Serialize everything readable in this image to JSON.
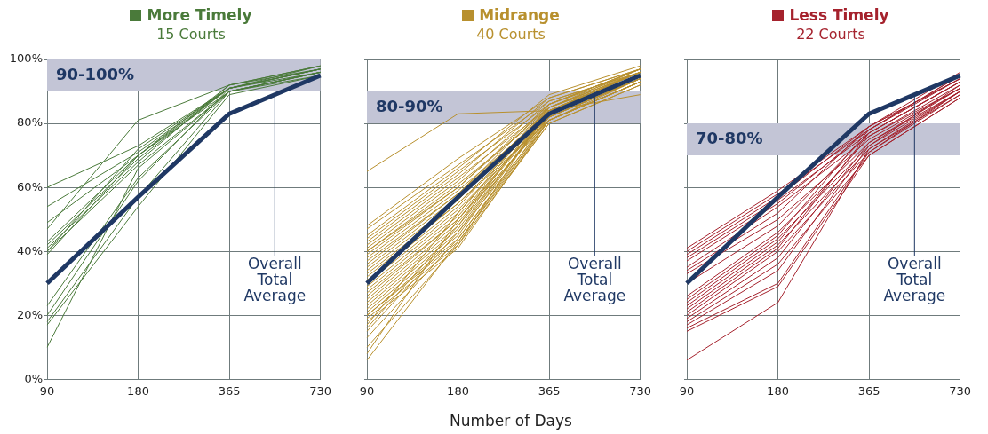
{
  "chart_data": [
    {
      "type": "line",
      "title": "More Timely",
      "subtitle": "15 Courts",
      "categories": [
        "90",
        "180",
        "365",
        "730"
      ],
      "ylim": [
        0,
        100
      ],
      "yticks": [
        {
          "value": 0,
          "label": "0%"
        },
        {
          "value": 20,
          "label": "20%"
        },
        {
          "value": 40,
          "label": "40%"
        },
        {
          "value": 60,
          "label": "60%"
        },
        {
          "value": 80,
          "label": "80%"
        },
        {
          "value": 100,
          "label": "100%"
        }
      ],
      "grid": true,
      "legend": false,
      "marker": "none",
      "bands": [
        {
          "axis": "y",
          "from": 90,
          "to": 100,
          "label": "90-100%",
          "color": "#c3c5d6"
        }
      ],
      "annotations": [
        "Overall Total Average"
      ],
      "series": [
        {
          "color": "#4a7a3a",
          "values": [
            60,
            73,
            91,
            97
          ]
        },
        {
          "color": "#4a7a3a",
          "values": [
            54,
            71,
            91,
            97
          ]
        },
        {
          "color": "#4a7a3a",
          "values": [
            49,
            70,
            91,
            96
          ]
        },
        {
          "color": "#4a7a3a",
          "values": [
            43,
            70,
            92,
            98
          ]
        },
        {
          "color": "#4a7a3a",
          "values": [
            42,
            69,
            91,
            97
          ]
        },
        {
          "color": "#4a7a3a",
          "values": [
            41,
            68,
            92,
            97
          ]
        },
        {
          "color": "#4a7a3a",
          "values": [
            40,
            67,
            90,
            96
          ]
        },
        {
          "color": "#4a7a3a",
          "values": [
            40,
            72,
            91,
            98
          ]
        },
        {
          "color": "#4a7a3a",
          "values": [
            39,
            70,
            90,
            96
          ]
        },
        {
          "color": "#4a7a3a",
          "values": [
            23,
            63,
            90,
            95
          ]
        },
        {
          "color": "#4a7a3a",
          "values": [
            20,
            62,
            91,
            97
          ]
        },
        {
          "color": "#4a7a3a",
          "values": [
            18,
            57,
            90,
            96
          ]
        },
        {
          "color": "#4a7a3a",
          "values": [
            17,
            54,
            89,
            95
          ]
        },
        {
          "color": "#4a7a3a",
          "values": [
            10,
            66,
            90,
            96
          ]
        },
        {
          "color": "#4a7a3a",
          "values": [
            47,
            81,
            92,
            98
          ]
        },
        {
          "color": "#1f3864",
          "values": [
            30,
            57,
            83,
            95
          ]
        }
      ]
    },
    {
      "type": "line",
      "title": "Midrange",
      "subtitle": "40 Courts",
      "categories": [
        "90",
        "180",
        "365",
        "730"
      ],
      "xlabel": "Number of Days",
      "ylim": [
        0,
        100
      ],
      "yticks": [
        0,
        20,
        40,
        60,
        80,
        100
      ],
      "tick_labels": "x",
      "grid": true,
      "legend": false,
      "marker": "none",
      "bands": [
        {
          "axis": "y",
          "from": 80,
          "to": 90,
          "label": "80-90%",
          "color": "#c3c5d6"
        }
      ],
      "annotations": [
        "Overall Total Average"
      ],
      "series": [
        {
          "color": "#b8902e",
          "values": [
            65,
            83,
            84,
            89
          ]
        },
        {
          "color": "#b8902e",
          "values": [
            48,
            69,
            88,
            97
          ]
        },
        {
          "color": "#b8902e",
          "values": [
            47,
            67,
            87,
            96
          ]
        },
        {
          "color": "#b8902e",
          "values": [
            45,
            66,
            89,
            98
          ]
        },
        {
          "color": "#b8902e",
          "values": [
            44,
            65,
            86,
            96
          ]
        },
        {
          "color": "#b8902e",
          "values": [
            43,
            64,
            88,
            97
          ]
        },
        {
          "color": "#b8902e",
          "values": [
            42,
            63,
            85,
            95
          ]
        },
        {
          "color": "#b8902e",
          "values": [
            41,
            62,
            87,
            96
          ]
        },
        {
          "color": "#b8902e",
          "values": [
            40,
            61,
            84,
            95
          ]
        },
        {
          "color": "#b8902e",
          "values": [
            40,
            60,
            86,
            97
          ]
        },
        {
          "color": "#b8902e",
          "values": [
            39,
            60,
            85,
            96
          ]
        },
        {
          "color": "#b8902e",
          "values": [
            38,
            59,
            83,
            94
          ]
        },
        {
          "color": "#b8902e",
          "values": [
            37,
            58,
            86,
            97
          ]
        },
        {
          "color": "#b8902e",
          "values": [
            36,
            58,
            84,
            95
          ]
        },
        {
          "color": "#b8902e",
          "values": [
            35,
            57,
            82,
            94
          ]
        },
        {
          "color": "#b8902e",
          "values": [
            34,
            56,
            85,
            96
          ]
        },
        {
          "color": "#b8902e",
          "values": [
            33,
            55,
            83,
            95
          ]
        },
        {
          "color": "#b8902e",
          "values": [
            32,
            55,
            81,
            93
          ]
        },
        {
          "color": "#b8902e",
          "values": [
            31,
            54,
            84,
            96
          ]
        },
        {
          "color": "#b8902e",
          "values": [
            30,
            53,
            82,
            94
          ]
        },
        {
          "color": "#b8902e",
          "values": [
            29,
            52,
            85,
            97
          ]
        },
        {
          "color": "#b8902e",
          "values": [
            28,
            51,
            83,
            95
          ]
        },
        {
          "color": "#b8902e",
          "values": [
            27,
            50,
            81,
            93
          ]
        },
        {
          "color": "#b8902e",
          "values": [
            26,
            50,
            84,
            96
          ]
        },
        {
          "color": "#b8902e",
          "values": [
            25,
            49,
            82,
            94
          ]
        },
        {
          "color": "#b8902e",
          "values": [
            24,
            48,
            86,
            97
          ]
        },
        {
          "color": "#b8902e",
          "values": [
            23,
            47,
            83,
            95
          ]
        },
        {
          "color": "#b8902e",
          "values": [
            22,
            46,
            81,
            93
          ]
        },
        {
          "color": "#b8902e",
          "values": [
            21,
            45,
            84,
            96
          ]
        },
        {
          "color": "#b8902e",
          "values": [
            20,
            44,
            82,
            94
          ]
        },
        {
          "color": "#b8902e",
          "values": [
            20,
            43,
            80,
            92
          ]
        },
        {
          "color": "#b8902e",
          "values": [
            19,
            42,
            85,
            96
          ]
        },
        {
          "color": "#b8902e",
          "values": [
            18,
            41,
            81,
            93
          ]
        },
        {
          "color": "#b8902e",
          "values": [
            17,
            52,
            83,
            95
          ]
        },
        {
          "color": "#b8902e",
          "values": [
            16,
            48,
            82,
            94
          ]
        },
        {
          "color": "#b8902e",
          "values": [
            15,
            46,
            84,
            96
          ]
        },
        {
          "color": "#b8902e",
          "values": [
            13,
            44,
            81,
            93
          ]
        },
        {
          "color": "#b8902e",
          "values": [
            10,
            42,
            80,
            92
          ]
        },
        {
          "color": "#b8902e",
          "values": [
            8,
            50,
            83,
            95
          ]
        },
        {
          "color": "#b8902e",
          "values": [
            6,
            43,
            81,
            94
          ]
        },
        {
          "color": "#1f3864",
          "values": [
            30,
            57,
            83,
            95
          ]
        }
      ]
    },
    {
      "type": "line",
      "title": "Less Timely",
      "subtitle": "22 Courts",
      "categories": [
        "90",
        "180",
        "365",
        "730"
      ],
      "ylim": [
        0,
        100
      ],
      "yticks": [
        0,
        20,
        40,
        60,
        80,
        100
      ],
      "tick_labels": "x",
      "grid": true,
      "legend": false,
      "marker": "none",
      "bands": [
        {
          "axis": "y",
          "from": 70,
          "to": 80,
          "label": "70-80%",
          "color": "#c3c5d6"
        }
      ],
      "annotations": [
        "Overall Total Average"
      ],
      "series": [
        {
          "color": "#a5222d",
          "values": [
            41,
            59,
            79,
            96
          ]
        },
        {
          "color": "#a5222d",
          "values": [
            40,
            58,
            78,
            95
          ]
        },
        {
          "color": "#a5222d",
          "values": [
            39,
            57,
            79,
            94
          ]
        },
        {
          "color": "#a5222d",
          "values": [
            38,
            56,
            77,
            93
          ]
        },
        {
          "color": "#a5222d",
          "values": [
            37,
            55,
            78,
            95
          ]
        },
        {
          "color": "#a5222d",
          "values": [
            35,
            54,
            76,
            92
          ]
        },
        {
          "color": "#a5222d",
          "values": [
            34,
            52,
            79,
            94
          ]
        },
        {
          "color": "#a5222d",
          "values": [
            33,
            50,
            75,
            91
          ]
        },
        {
          "color": "#a5222d",
          "values": [
            30,
            48,
            77,
            93
          ]
        },
        {
          "color": "#a5222d",
          "values": [
            26,
            46,
            74,
            90
          ]
        },
        {
          "color": "#a5222d",
          "values": [
            25,
            45,
            78,
            94
          ]
        },
        {
          "color": "#a5222d",
          "values": [
            24,
            44,
            73,
            92
          ]
        },
        {
          "color": "#a5222d",
          "values": [
            23,
            43,
            76,
            91
          ]
        },
        {
          "color": "#a5222d",
          "values": [
            22,
            42,
            72,
            89
          ]
        },
        {
          "color": "#a5222d",
          "values": [
            21,
            41,
            77,
            93
          ]
        },
        {
          "color": "#a5222d",
          "values": [
            20,
            40,
            71,
            90
          ]
        },
        {
          "color": "#a5222d",
          "values": [
            19,
            38,
            74,
            91
          ]
        },
        {
          "color": "#a5222d",
          "values": [
            18,
            36,
            70,
            88
          ]
        },
        {
          "color": "#a5222d",
          "values": [
            17,
            34,
            73,
            90
          ]
        },
        {
          "color": "#a5222d",
          "values": [
            16,
            30,
            71,
            89
          ]
        },
        {
          "color": "#a5222d",
          "values": [
            15,
            29,
            70,
            88
          ]
        },
        {
          "color": "#a5222d",
          "values": [
            6,
            24,
            72,
            90
          ]
        },
        {
          "color": "#1f3864",
          "values": [
            30,
            57,
            83,
            95
          ]
        }
      ]
    }
  ]
}
